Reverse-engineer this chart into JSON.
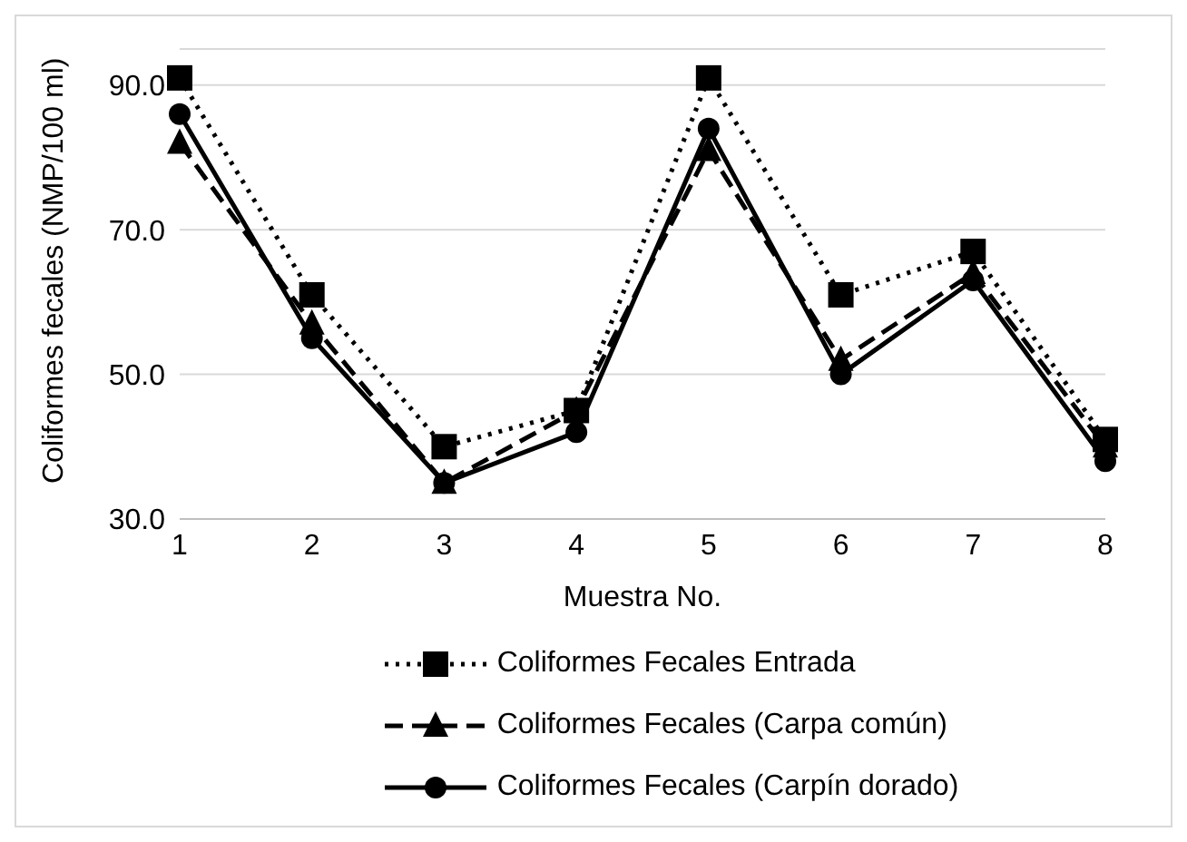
{
  "chart_data": {
    "type": "line",
    "xlabel": "Muestra No.",
    "ylabel": "Coliformes fecales (NMP/100 ml)",
    "categories": [
      "1",
      "2",
      "3",
      "4",
      "5",
      "6",
      "7",
      "8"
    ],
    "series": [
      {
        "name": "Coliformes Fecales Entrada",
        "color": "#000000",
        "marker": "square",
        "line_style": "dotted",
        "values": [
          91,
          61,
          40,
          45,
          91,
          61,
          67,
          41
        ]
      },
      {
        "name": "Coliformes Fecales (Carpa común)",
        "color": "#000000",
        "marker": "triangle",
        "line_style": "dashed",
        "values": [
          82,
          57,
          35,
          45,
          81,
          52,
          64,
          40
        ]
      },
      {
        "name": "Coliformes Fecales (Carpín dorado)",
        "color": "#000000",
        "marker": "circle",
        "line_style": "solid",
        "values": [
          86,
          55,
          35,
          42,
          84,
          50,
          63,
          38
        ]
      }
    ],
    "ylim": [
      30,
      95
    ],
    "yticks": [
      {
        "value": 30,
        "label": "30.0"
      },
      {
        "value": 50,
        "label": "50.0"
      },
      {
        "value": 70,
        "label": "70.0"
      },
      {
        "value": 90,
        "label": "90.0"
      }
    ],
    "grid": "y",
    "legend": "bottom"
  }
}
